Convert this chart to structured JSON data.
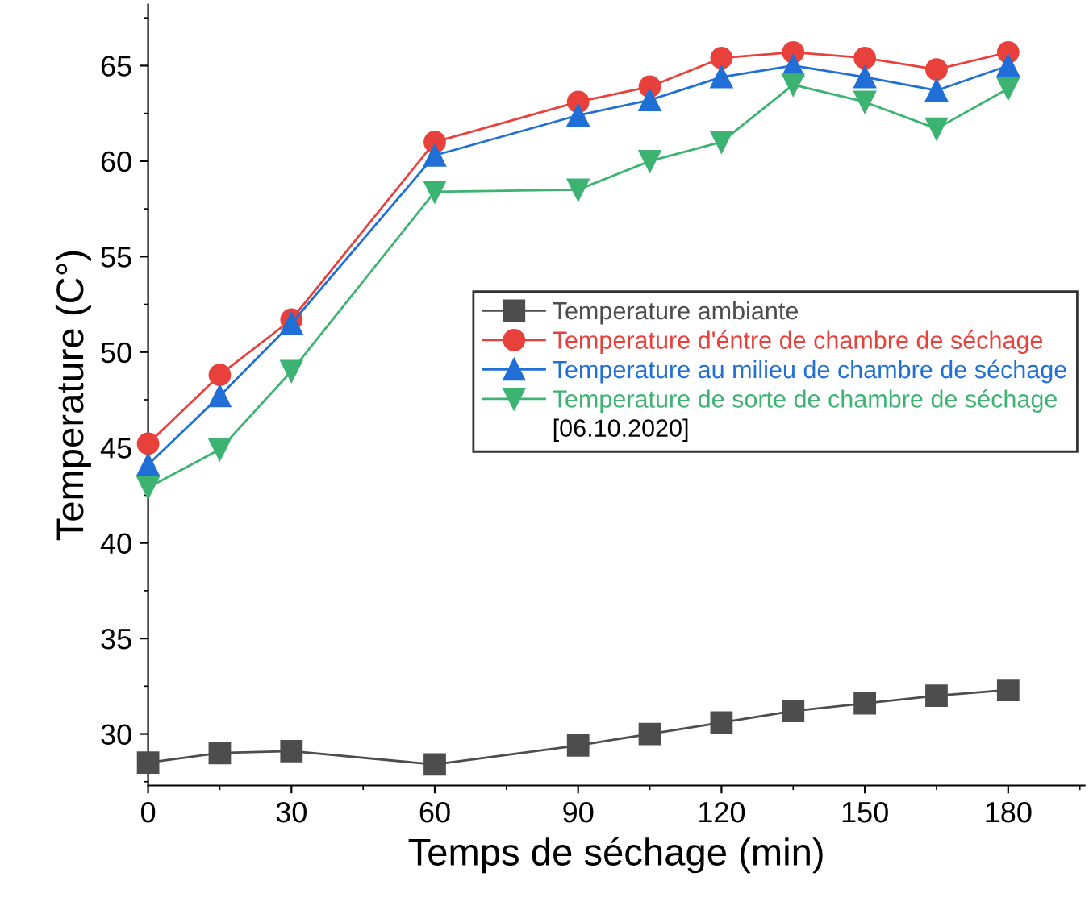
{
  "chart_data": {
    "type": "line",
    "xlabel": "Temps de séchage (min)",
    "ylabel": "Temperature (C°)",
    "x": [
      0,
      15,
      30,
      60,
      90,
      105,
      120,
      135,
      150,
      165,
      180
    ],
    "series": [
      {
        "name": "Temperature ambiante",
        "color": "#4d4d4d",
        "marker": "square",
        "values": [
          28.5,
          29.0,
          29.1,
          28.4,
          29.4,
          30.0,
          30.6,
          31.2,
          31.6,
          32.0,
          32.3
        ]
      },
      {
        "name": "Temperature d'éntre de chambre de séchage",
        "color": "#e8413c",
        "marker": "circle",
        "values": [
          45.2,
          48.8,
          51.7,
          61.0,
          63.1,
          63.9,
          65.4,
          65.7,
          65.4,
          64.8,
          65.7
        ]
      },
      {
        "name": "Temperature au milieu de chambre de séchage",
        "color": "#1f6fd6",
        "marker": "triangle",
        "values": [
          44.1,
          47.7,
          51.5,
          60.3,
          62.4,
          63.2,
          64.4,
          65.0,
          64.4,
          63.7,
          65.0
        ]
      },
      {
        "name": "Temperature de sorte de chambre de séchage",
        "color": "#3cb371",
        "marker": "triangle_down",
        "values": [
          42.9,
          44.9,
          49.0,
          58.4,
          58.5,
          60.0,
          61.0,
          64.0,
          63.1,
          61.7,
          63.8
        ]
      }
    ],
    "xlim": [
      0,
      196
    ],
    "ylim": [
      27.3,
      68.2
    ],
    "xticks": [
      0,
      30,
      60,
      90,
      120,
      150,
      180
    ],
    "yticks": [
      30,
      35,
      40,
      45,
      50,
      55,
      60,
      65
    ],
    "grid": false,
    "legend": "right",
    "line_style": "solid",
    "annotations": [
      "[06.10.2020]"
    ]
  }
}
